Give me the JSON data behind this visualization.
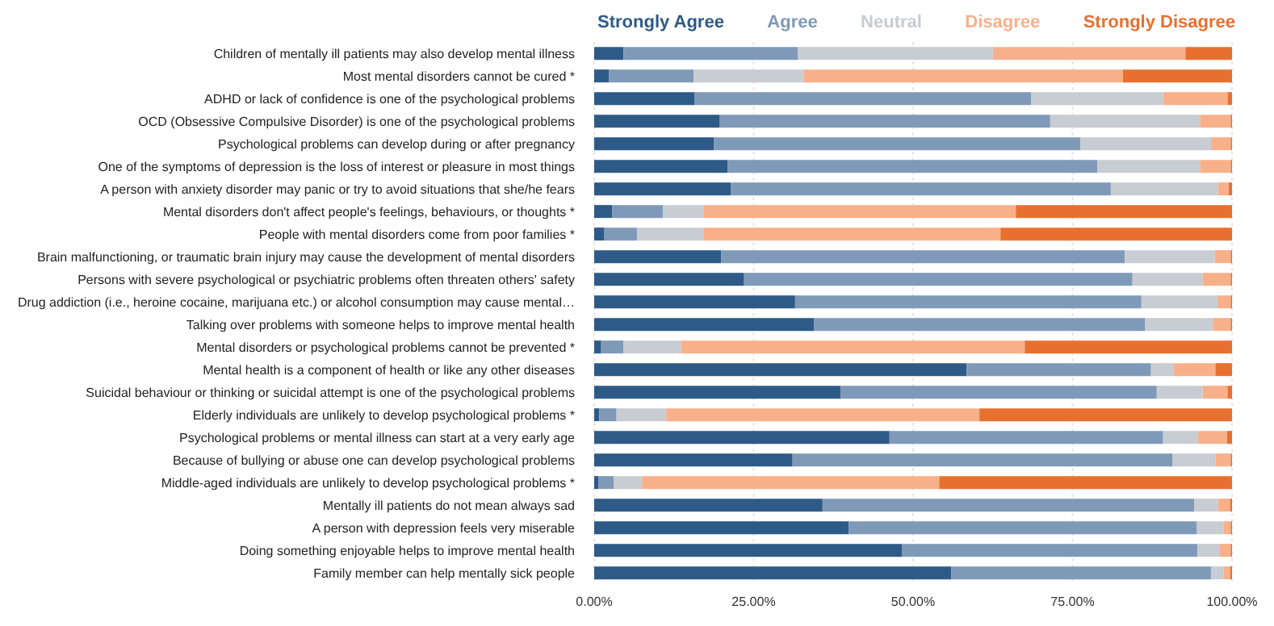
{
  "chart_data": {
    "type": "bar",
    "orientation": "horizontal",
    "stacked": true,
    "legend": "top",
    "grid": "x",
    "categories": [
      "Children of mentally ill patients may also develop mental illness",
      "Most mental disorders cannot be cured *",
      "ADHD or lack of confidence is one of the psychological problems",
      "OCD (Obsessive Compulsive Disorder) is one of the psychological problems",
      "Psychological problems can develop during or after pregnancy",
      "One of the symptoms of depression is the loss of interest or pleasure in most things",
      "A person with anxiety disorder may panic or try to avoid situations that she/he fears",
      "Mental disorders don't affect people's feelings, behaviours, or thoughts *",
      "People with mental disorders come from poor families *",
      "Brain malfunctioning, or traumatic brain injury may cause the development of mental disorders",
      "Persons with severe psychological or psychiatric problems often threaten others' safety",
      "Drug addiction (i.e., heroine cocaine, marijuana etc.) or alcohol consumption may cause mental…",
      "Talking over problems with someone helps to improve mental health",
      "Mental disorders or psychological problems cannot be prevented *",
      "Mental health is a component of health or like any other diseases",
      "Suicidal behaviour or thinking or suicidal attempt is one of the psychological problems",
      "Elderly individuals are unlikely to develop psychological problems *",
      "Psychological problems or mental illness can start at a very early age",
      "Because of bullying or abuse one can develop psychological problems",
      "Middle-aged individuals are unlikely to develop psychological problems *",
      "Mentally ill patients do not mean always sad",
      "A person with depression feels very miserable",
      "Doing something enjoyable helps to improve mental health",
      "Family member can help mentally sick people"
    ],
    "xlim": [
      0,
      100
    ],
    "xticks": [
      {
        "value": 0,
        "label": "0.00%"
      },
      {
        "value": 25,
        "label": "25.00%"
      },
      {
        "value": 50,
        "label": "50.00%"
      },
      {
        "value": 75,
        "label": "75.00%"
      },
      {
        "value": 100,
        "label": "100.00%"
      }
    ],
    "series": [
      {
        "name": "Strongly Agree",
        "color": "#2e5a87",
        "values": [
          4.6,
          2.3,
          15.7,
          19.7,
          18.8,
          20.9,
          21.4,
          2.8,
          1.6,
          19.9,
          23.5,
          31.5,
          34.5,
          1.1,
          58.4,
          38.6,
          0.8,
          46.3,
          31.1,
          0.7,
          35.8,
          39.9,
          48.3,
          56.0
        ]
      },
      {
        "name": "Agree",
        "color": "#7f9ab8",
        "values": [
          27.3,
          13.3,
          52.8,
          51.8,
          57.4,
          58.0,
          59.6,
          8.0,
          5.1,
          63.3,
          60.9,
          54.3,
          51.9,
          3.5,
          28.9,
          49.6,
          2.7,
          42.9,
          59.6,
          2.4,
          58.3,
          54.6,
          46.3,
          40.7
        ]
      },
      {
        "name": "Neutral",
        "color": "#c8ccd3",
        "values": [
          30.6,
          17.3,
          20.7,
          23.5,
          20.5,
          16.1,
          16.8,
          6.4,
          10.5,
          14.1,
          11.0,
          11.9,
          10.6,
          9.0,
          3.6,
          7.2,
          7.8,
          5.5,
          6.7,
          4.4,
          3.7,
          4.2,
          3.4,
          2.0
        ]
      },
      {
        "name": "Disagree",
        "color": "#f8b08a",
        "values": [
          30.2,
          50.0,
          10.1,
          4.8,
          3.1,
          4.8,
          1.7,
          48.9,
          46.5,
          2.5,
          4.4,
          2.1,
          2.8,
          53.9,
          6.5,
          3.9,
          49.1,
          4.5,
          2.4,
          46.6,
          1.9,
          1.1,
          1.8,
          1.0
        ]
      },
      {
        "name": "Strongly Disagree",
        "color": "#e8702f",
        "values": [
          7.3,
          17.1,
          0.7,
          0.2,
          0.2,
          0.2,
          0.5,
          33.9,
          36.3,
          0.2,
          0.2,
          0.2,
          0.2,
          32.5,
          2.6,
          0.7,
          39.6,
          0.8,
          0.2,
          45.9,
          0.3,
          0.2,
          0.2,
          0.3
        ]
      }
    ]
  }
}
